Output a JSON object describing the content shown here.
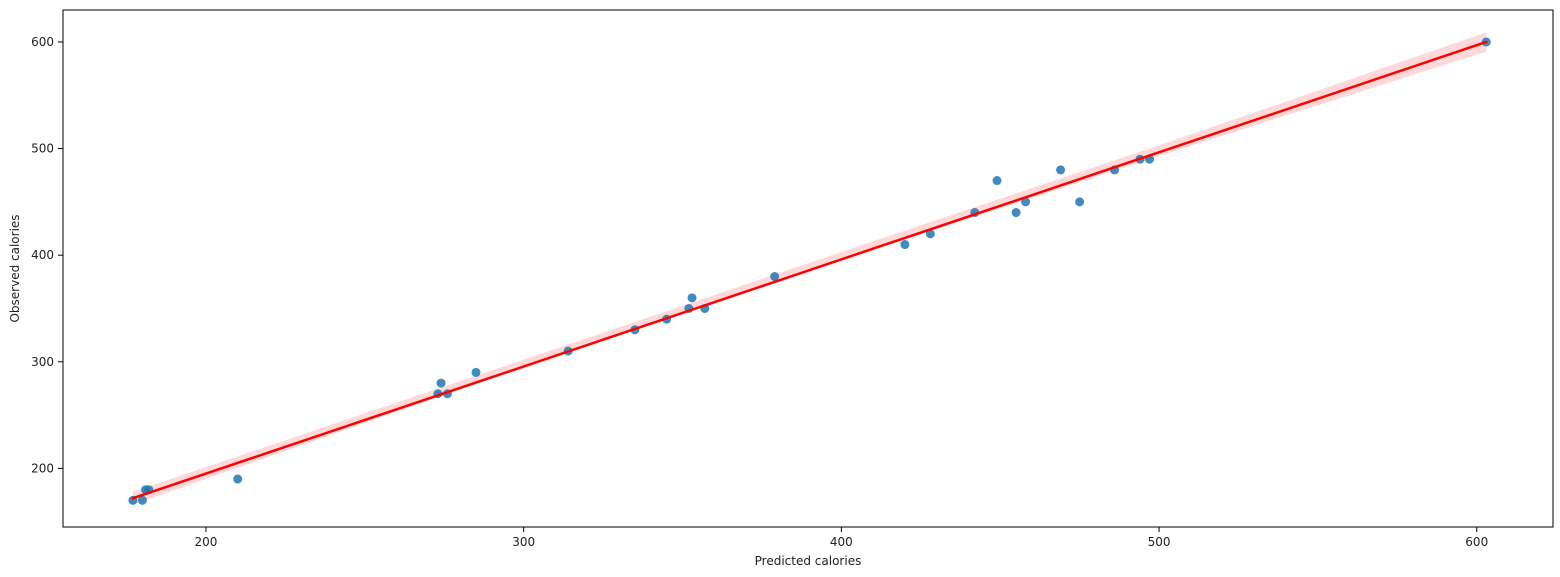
{
  "chart_data": {
    "type": "scatter",
    "xlabel": "Predicted calories",
    "ylabel": "Observed calories",
    "xlim": [
      155,
      624
    ],
    "ylim": [
      145,
      630
    ],
    "xticks": [
      200,
      300,
      400,
      500,
      600
    ],
    "yticks": [
      200,
      300,
      400,
      500,
      600
    ],
    "grid": false,
    "points": [
      {
        "x": 177,
        "y": 170
      },
      {
        "x": 180,
        "y": 170
      },
      {
        "x": 181,
        "y": 180
      },
      {
        "x": 182,
        "y": 180
      },
      {
        "x": 210,
        "y": 190
      },
      {
        "x": 273,
        "y": 270
      },
      {
        "x": 274,
        "y": 280
      },
      {
        "x": 276,
        "y": 270
      },
      {
        "x": 285,
        "y": 290
      },
      {
        "x": 314,
        "y": 310
      },
      {
        "x": 335,
        "y": 330
      },
      {
        "x": 345,
        "y": 340
      },
      {
        "x": 352,
        "y": 350
      },
      {
        "x": 353,
        "y": 360
      },
      {
        "x": 357,
        "y": 350
      },
      {
        "x": 379,
        "y": 380
      },
      {
        "x": 420,
        "y": 410
      },
      {
        "x": 428,
        "y": 420
      },
      {
        "x": 442,
        "y": 440
      },
      {
        "x": 449,
        "y": 470
      },
      {
        "x": 455,
        "y": 440
      },
      {
        "x": 458,
        "y": 450
      },
      {
        "x": 469,
        "y": 480
      },
      {
        "x": 475,
        "y": 450
      },
      {
        "x": 486,
        "y": 480
      },
      {
        "x": 494,
        "y": 490
      },
      {
        "x": 497,
        "y": 490
      },
      {
        "x": 603,
        "y": 600
      }
    ],
    "regression_line": {
      "x": [
        177,
        603
      ],
      "y": [
        172,
        600
      ],
      "color": "#ff0000"
    },
    "confidence_band": {
      "x": [
        177,
        300,
        400,
        500,
        603
      ],
      "lower": [
        166,
        295,
        395,
        493,
        591
      ],
      "upper": [
        178,
        302,
        403,
        503,
        609
      ],
      "color": "#ffcccc"
    },
    "point_color": "#1f77b4"
  }
}
